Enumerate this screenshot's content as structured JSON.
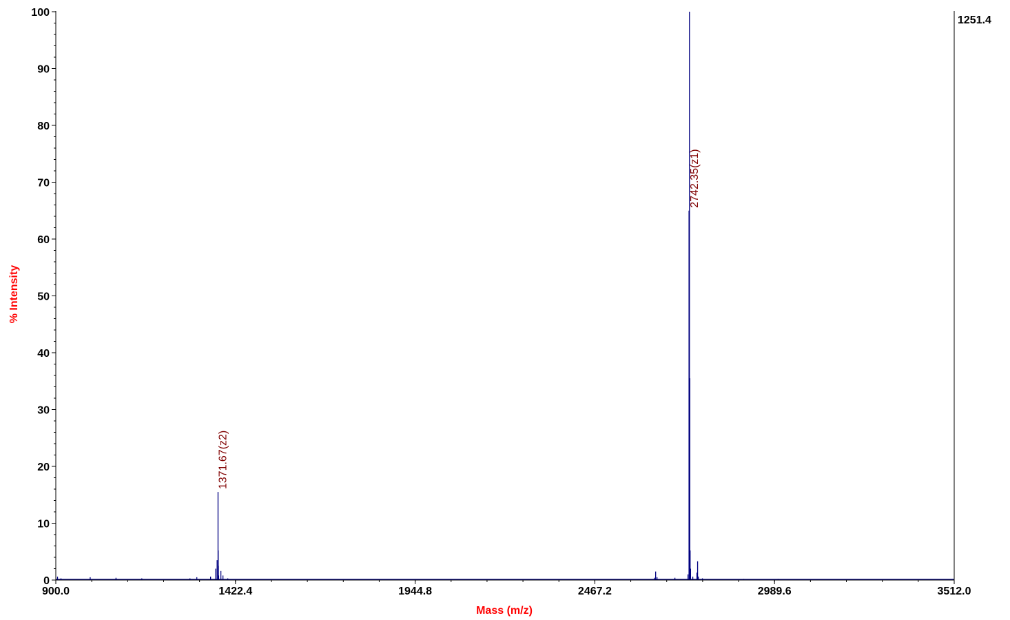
{
  "chart_data": {
    "type": "line",
    "xlabel": "Mass (m/z)",
    "ylabel": "% Intensity",
    "xlim": [
      900.0,
      3512.0
    ],
    "ylim": [
      0,
      100
    ],
    "x_ticks": [
      "900.0",
      "1422.4",
      "1944.8",
      "2467.2",
      "2989.6",
      "3512.0"
    ],
    "y_ticks": [
      "0",
      "10",
      "20",
      "30",
      "40",
      "50",
      "60",
      "70",
      "80",
      "90",
      "100"
    ],
    "max_intensity_label": "1251.4",
    "grid": false,
    "colors": {
      "spectrum": "#000080",
      "axis_title": "#ff0000",
      "peak_label": "#800000",
      "axis": "#000000"
    },
    "series": [
      {
        "values": [
          [
            905,
            0.6
          ],
          [
            915,
            0.3
          ],
          [
            1000,
            0.5
          ],
          [
            1075,
            0.4
          ],
          [
            1150,
            0.3
          ],
          [
            1290,
            0.3
          ],
          [
            1310,
            0.5
          ],
          [
            1350,
            0.6
          ],
          [
            1365,
            2.0
          ],
          [
            1369,
            3.5
          ],
          [
            1371.67,
            15.5
          ],
          [
            1372.2,
            5.2
          ],
          [
            1372.7,
            2.5
          ],
          [
            1373.5,
            0.8
          ],
          [
            1380,
            1.6
          ],
          [
            1386,
            0.8
          ],
          [
            1400,
            0.3
          ],
          [
            2640,
            0.4
          ],
          [
            2644,
            1.5
          ],
          [
            2648,
            0.5
          ],
          [
            2700,
            0.4
          ],
          [
            2738,
            1.0
          ],
          [
            2741,
            65.0
          ],
          [
            2742.35,
            100.0
          ],
          [
            2743.3,
            35.5
          ],
          [
            2744.3,
            5.2
          ],
          [
            2745.5,
            2.0
          ],
          [
            2752,
            0.6
          ],
          [
            2764,
            1.3
          ],
          [
            2766,
            3.3
          ],
          [
            2768,
            0.6
          ],
          [
            2780,
            0.3
          ],
          [
            2900,
            0.2
          ],
          [
            3000,
            0.2
          ],
          [
            3500,
            0.1
          ]
        ]
      }
    ],
    "annotations": [
      {
        "x": 1371.67,
        "y": 15.5,
        "text": "1371.67(z2)"
      },
      {
        "x": 2742.35,
        "y": 65.0,
        "text": "2742.35(z1)"
      }
    ]
  }
}
